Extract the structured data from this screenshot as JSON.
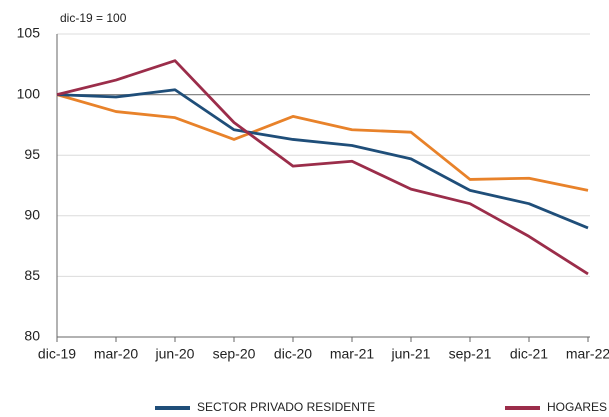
{
  "chart_data": {
    "type": "line",
    "annotation": "dic-19 = 100",
    "categories": [
      "dic-19",
      "mar-20",
      "jun-20",
      "sep-20",
      "dic-20",
      "mar-21",
      "jun-21",
      "sep-21",
      "dic-21",
      "mar-22"
    ],
    "series": [
      {
        "color": "#e8822a",
        "values": [
          100,
          98.6,
          98.1,
          96.3,
          98.2,
          97.1,
          96.9,
          93.0,
          93.1,
          92.1
        ]
      },
      {
        "name": "SECTOR PRIVADO RESIDENTE",
        "color": "#1f4e79",
        "values": [
          100,
          99.8,
          100.4,
          97.1,
          96.3,
          95.8,
          94.7,
          92.1,
          91.0,
          89.0
        ]
      },
      {
        "name": "HOGARES",
        "color": "#9b2d4a",
        "values": [
          100,
          101.2,
          102.8,
          97.7,
          94.1,
          94.5,
          92.2,
          91.0,
          88.3,
          85.2
        ]
      }
    ],
    "ylim": [
      80,
      105
    ],
    "yticks": [
      80,
      85,
      90,
      95,
      100,
      105
    ],
    "reference_line": 100,
    "grid": true
  }
}
